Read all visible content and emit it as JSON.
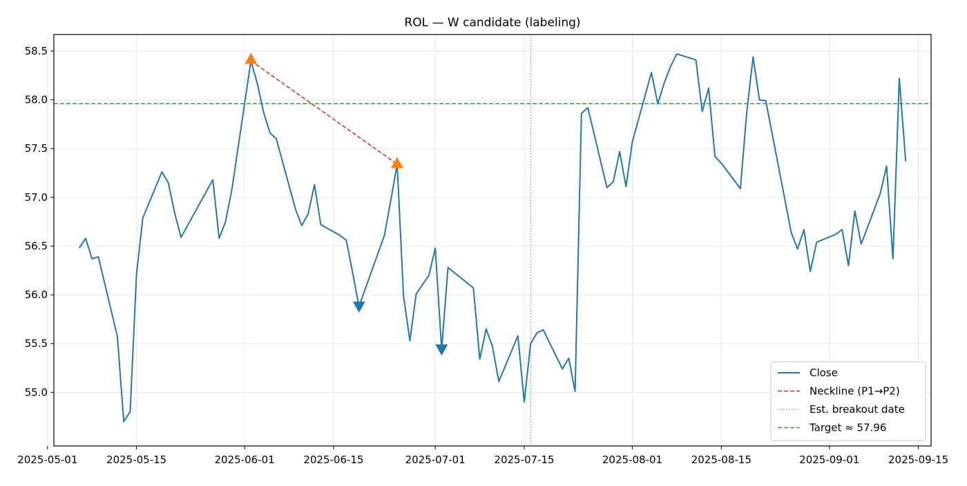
{
  "chart_data": {
    "type": "line",
    "title": "ROL — W candidate (labeling)",
    "xlabel": "",
    "ylabel": "",
    "xlim": [
      "2025-05-02",
      "2025-09-17"
    ],
    "ylim": [
      54.45,
      58.67
    ],
    "x_ticks": [
      "2025-05-01",
      "2025-05-15",
      "2025-06-01",
      "2025-06-15",
      "2025-07-01",
      "2025-07-15",
      "2025-08-01",
      "2025-08-15",
      "2025-09-01",
      "2025-09-15"
    ],
    "y_ticks": [
      "55.0",
      "55.5",
      "56.0",
      "56.5",
      "57.0",
      "57.5",
      "58.0",
      "58.5"
    ],
    "grid": true,
    "legend_position": "lower-right",
    "series": [
      {
        "name": "Close",
        "color": "#1f77b4",
        "style": "solid",
        "points": [
          [
            "2025-05-06",
            56.48
          ],
          [
            "2025-05-07",
            56.58
          ],
          [
            "2025-05-08",
            56.37
          ],
          [
            "2025-05-09",
            56.39
          ],
          [
            "2025-05-12",
            55.57
          ],
          [
            "2025-05-13",
            54.7
          ],
          [
            "2025-05-14",
            54.8
          ],
          [
            "2025-05-15",
            56.21
          ],
          [
            "2025-05-16",
            56.79
          ],
          [
            "2025-05-19",
            57.26
          ],
          [
            "2025-05-20",
            57.15
          ],
          [
            "2025-05-21",
            56.84
          ],
          [
            "2025-05-22",
            56.59
          ],
          [
            "2025-05-27",
            57.18
          ],
          [
            "2025-05-28",
            56.58
          ],
          [
            "2025-05-29",
            56.75
          ],
          [
            "2025-05-30",
            57.08
          ],
          [
            "2025-06-02",
            58.4
          ],
          [
            "2025-06-03",
            58.17
          ],
          [
            "2025-06-04",
            57.87
          ],
          [
            "2025-06-05",
            57.66
          ],
          [
            "2025-06-06",
            57.6
          ],
          [
            "2025-06-09",
            56.88
          ],
          [
            "2025-06-10",
            56.71
          ],
          [
            "2025-06-11",
            56.83
          ],
          [
            "2025-06-12",
            57.13
          ],
          [
            "2025-06-13",
            56.72
          ],
          [
            "2025-06-16",
            56.61
          ],
          [
            "2025-06-17",
            56.56
          ],
          [
            "2025-06-18",
            56.23
          ],
          [
            "2025-06-19",
            55.88
          ],
          [
            "2025-06-23",
            56.61
          ],
          [
            "2025-06-24",
            56.97
          ],
          [
            "2025-06-25",
            57.34
          ],
          [
            "2025-06-26",
            55.99
          ],
          [
            "2025-06-27",
            55.53
          ],
          [
            "2025-06-28",
            56.01
          ],
          [
            "2025-06-30",
            56.2
          ],
          [
            "2025-07-01",
            56.48
          ],
          [
            "2025-07-02",
            55.44
          ],
          [
            "2025-07-03",
            56.28
          ],
          [
            "2025-07-07",
            56.07
          ],
          [
            "2025-07-08",
            55.34
          ],
          [
            "2025-07-09",
            55.65
          ],
          [
            "2025-07-10",
            55.47
          ],
          [
            "2025-07-11",
            55.11
          ],
          [
            "2025-07-14",
            55.58
          ],
          [
            "2025-07-15",
            54.9
          ],
          [
            "2025-07-16",
            55.5
          ],
          [
            "2025-07-17",
            55.61
          ],
          [
            "2025-07-18",
            55.64
          ],
          [
            "2025-07-21",
            55.24
          ],
          [
            "2025-07-22",
            55.35
          ],
          [
            "2025-07-23",
            55.01
          ],
          [
            "2025-07-24",
            57.86
          ],
          [
            "2025-07-25",
            57.92
          ],
          [
            "2025-07-28",
            57.1
          ],
          [
            "2025-07-29",
            57.16
          ],
          [
            "2025-07-30",
            57.47
          ],
          [
            "2025-07-31",
            57.11
          ],
          [
            "2025-08-01",
            57.57
          ],
          [
            "2025-08-04",
            58.28
          ],
          [
            "2025-08-05",
            57.96
          ],
          [
            "2025-08-06",
            58.17
          ],
          [
            "2025-08-07",
            58.34
          ],
          [
            "2025-08-08",
            58.47
          ],
          [
            "2025-08-11",
            58.41
          ],
          [
            "2025-08-12",
            57.88
          ],
          [
            "2025-08-13",
            58.12
          ],
          [
            "2025-08-14",
            57.42
          ],
          [
            "2025-08-15",
            57.35
          ],
          [
            "2025-08-18",
            57.09
          ],
          [
            "2025-08-19",
            57.87
          ],
          [
            "2025-08-20",
            58.44
          ],
          [
            "2025-08-21",
            58.0
          ],
          [
            "2025-08-22",
            57.99
          ],
          [
            "2025-08-26",
            56.64
          ],
          [
            "2025-08-27",
            56.47
          ],
          [
            "2025-08-28",
            56.67
          ],
          [
            "2025-08-29",
            56.24
          ],
          [
            "2025-08-30",
            56.54
          ],
          [
            "2025-09-02",
            56.62
          ],
          [
            "2025-09-03",
            56.67
          ],
          [
            "2025-09-04",
            56.3
          ],
          [
            "2025-09-05",
            56.86
          ],
          [
            "2025-09-06",
            56.52
          ],
          [
            "2025-09-09",
            57.04
          ],
          [
            "2025-09-10",
            57.32
          ],
          [
            "2025-09-11",
            56.37
          ],
          [
            "2025-09-12",
            58.22
          ],
          [
            "2025-09-13",
            57.37
          ]
        ]
      },
      {
        "name": "Neckline (P1→P2)",
        "color": "#d62728",
        "style": "dashed",
        "points": [
          [
            "2025-06-02",
            58.4
          ],
          [
            "2025-06-25",
            57.34
          ]
        ]
      }
    ],
    "reference_lines": [
      {
        "label": "Est. breakout date",
        "orientation": "vertical",
        "x": "2025-07-16",
        "color": "#808080",
        "style": "dotted"
      },
      {
        "label": "Target ≈ 57.96",
        "orientation": "horizontal",
        "y": 57.96,
        "color": "#2ca02c",
        "style": "dashed"
      }
    ],
    "markers": [
      {
        "label": "P1",
        "shape": "triangle-up",
        "x": "2025-06-02",
        "y": 58.42,
        "color": "#ff7f0e"
      },
      {
        "label": "P2",
        "shape": "triangle-up",
        "x": "2025-06-25",
        "y": 57.35,
        "color": "#ff7f0e"
      },
      {
        "label": "T1",
        "shape": "triangle-down",
        "x": "2025-06-19",
        "y": 55.88,
        "color": "#1f77b4"
      },
      {
        "label": "T2",
        "shape": "triangle-down",
        "x": "2025-07-02",
        "y": 55.44,
        "color": "#1f77b4"
      }
    ]
  }
}
